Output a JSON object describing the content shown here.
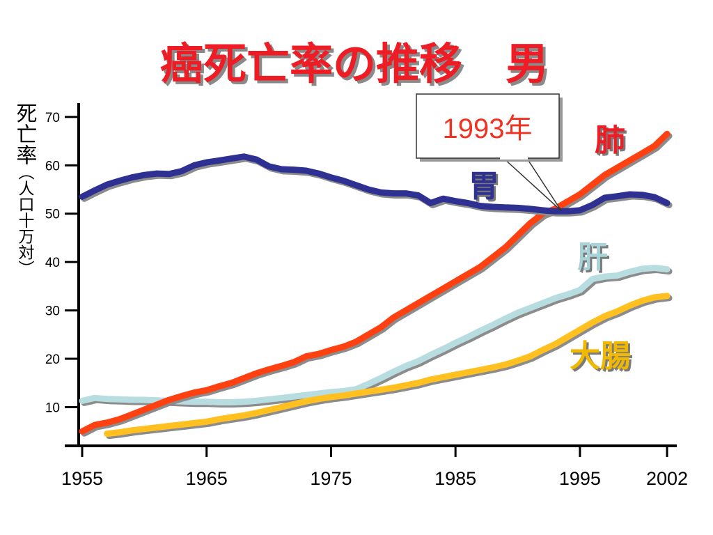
{
  "chart_data": {
    "type": "line",
    "title": "癌死亡率の推移　男",
    "ylabel_main": "死亡率",
    "ylabel_sub": "（人口十万対）",
    "xlim": [
      1955,
      2002
    ],
    "ylim": [
      2,
      72
    ],
    "yticks": [
      10,
      20,
      30,
      40,
      50,
      60,
      70
    ],
    "xticks": [
      1955,
      1965,
      1975,
      1985,
      1995,
      2002
    ],
    "series": [
      {
        "name": "胃",
        "color": "#2e3192",
        "labelColor": "#2e3192",
        "x": [
          1955,
          1956,
          1957,
          1958,
          1959,
          1960,
          1961,
          1962,
          1963,
          1964,
          1965,
          1966,
          1967,
          1968,
          1969,
          1970,
          1971,
          1972,
          1973,
          1974,
          1975,
          1976,
          1977,
          1978,
          1979,
          1980,
          1981,
          1982,
          1983,
          1984,
          1985,
          1986,
          1987,
          1988,
          1989,
          1990,
          1991,
          1992,
          1993,
          1994,
          1995,
          1996,
          1997,
          1998,
          1999,
          2000,
          2001,
          2002
        ],
        "y": [
          53.5,
          54.8,
          56,
          56.8,
          57.5,
          58,
          58.3,
          58.2,
          58.8,
          60,
          60.6,
          61,
          61.4,
          61.8,
          61.2,
          59.8,
          59.2,
          59.1,
          58.9,
          58.3,
          57.5,
          56.8,
          55.9,
          55,
          54.4,
          54.2,
          54.2,
          53.8,
          52.2,
          53.1,
          52.6,
          52.2,
          51.6,
          51.4,
          51.3,
          51.2,
          51,
          50.7,
          50.5,
          50.5,
          50.7,
          51.8,
          53.3,
          53.6,
          54,
          53.9,
          53.4,
          52.2
        ]
      },
      {
        "name": "肺",
        "color": "#ff4010",
        "labelColor": "#ee1c24",
        "x": [
          1955,
          1956,
          1957,
          1958,
          1959,
          1960,
          1961,
          1962,
          1963,
          1964,
          1965,
          1966,
          1967,
          1968,
          1969,
          1970,
          1971,
          1972,
          1973,
          1974,
          1975,
          1976,
          1977,
          1978,
          1979,
          1980,
          1981,
          1982,
          1983,
          1984,
          1985,
          1986,
          1987,
          1988,
          1989,
          1990,
          1991,
          1992,
          1993,
          1994,
          1995,
          1996,
          1997,
          1998,
          1999,
          2000,
          2001,
          2002
        ],
        "y": [
          5,
          6.3,
          6.8,
          7.5,
          8.5,
          9.5,
          10.5,
          11.5,
          12.3,
          13,
          13.5,
          14.3,
          15,
          16,
          17,
          17.8,
          18.5,
          19.3,
          20.5,
          21,
          21.8,
          22.5,
          23.5,
          25,
          26.5,
          28.5,
          30,
          31.5,
          33,
          34.5,
          36,
          37.5,
          39,
          41,
          43,
          45.5,
          48,
          50,
          51,
          52.5,
          54,
          56,
          58,
          59.5,
          61,
          62.5,
          64,
          66.5
        ]
      },
      {
        "name": "肝",
        "color": "#b8dde1",
        "labelColor": "#a8d3d8",
        "x": [
          1955,
          1956,
          1957,
          1958,
          1959,
          1960,
          1961,
          1962,
          1963,
          1964,
          1965,
          1966,
          1967,
          1968,
          1969,
          1970,
          1971,
          1972,
          1973,
          1974,
          1975,
          1976,
          1977,
          1978,
          1979,
          1980,
          1981,
          1982,
          1983,
          1984,
          1985,
          1986,
          1987,
          1988,
          1989,
          1990,
          1991,
          1992,
          1993,
          1994,
          1995,
          1996,
          1997,
          1998,
          1999,
          2000,
          2001,
          2002
        ],
        "y": [
          11.3,
          11.9,
          11.7,
          11.6,
          11.5,
          11.5,
          11.4,
          11.3,
          11.2,
          11.1,
          11.1,
          11.0,
          11.0,
          11.1,
          11.3,
          11.6,
          11.9,
          12.2,
          12.5,
          12.8,
          13.1,
          13.3,
          13.7,
          14.8,
          16,
          17.3,
          18.5,
          19.5,
          20.8,
          22,
          23.3,
          24.5,
          25.8,
          27,
          28.3,
          29.5,
          30.5,
          31.5,
          32.5,
          33.3,
          34.2,
          36.5,
          37,
          37.2,
          38,
          38.6,
          38.8,
          38.5
        ]
      },
      {
        "name": "大腸",
        "color": "#ffc020",
        "labelColor": "#f0b800",
        "x": [
          1957,
          1958,
          1959,
          1960,
          1961,
          1962,
          1963,
          1964,
          1965,
          1966,
          1967,
          1968,
          1969,
          1970,
          1971,
          1972,
          1973,
          1974,
          1975,
          1976,
          1977,
          1978,
          1979,
          1980,
          1981,
          1982,
          1983,
          1984,
          1985,
          1986,
          1987,
          1988,
          1989,
          1990,
          1991,
          1992,
          1993,
          1994,
          1995,
          1996,
          1997,
          1998,
          1999,
          2000,
          2001,
          2002
        ],
        "y": [
          4.5,
          4.8,
          5.2,
          5.5,
          5.8,
          6.1,
          6.4,
          6.7,
          7,
          7.5,
          7.9,
          8.3,
          8.8,
          9.4,
          10,
          10.6,
          11.2,
          11.7,
          12.1,
          12.4,
          12.8,
          13.2,
          13.6,
          14,
          14.5,
          15,
          15.7,
          16.2,
          16.7,
          17.2,
          17.7,
          18.2,
          18.8,
          19.6,
          20.5,
          21.8,
          23,
          24.5,
          26,
          27.5,
          28.8,
          29.8,
          31,
          32,
          32.7,
          33
        ]
      }
    ],
    "annotation": {
      "text": "1993年",
      "x": 1993.5,
      "y": 50.6
    }
  }
}
